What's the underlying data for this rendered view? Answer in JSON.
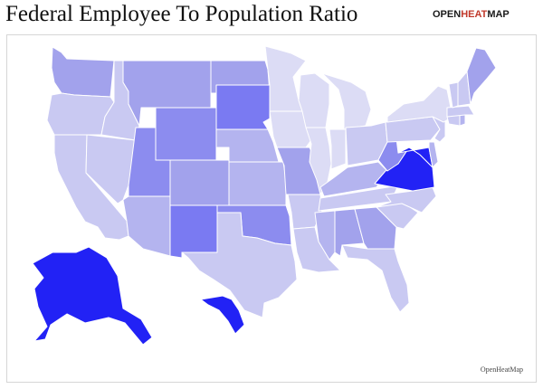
{
  "header": {
    "title": "Federal Employee To Population Ratio",
    "brand": {
      "open": "OPEN",
      "heat": "HEAT",
      "map": "MAP"
    }
  },
  "footer": {
    "credit": "OpenHeatMap"
  },
  "colors": {
    "background": "#ffffff",
    "border": "#d6d6d6",
    "brand_accent": "#c0392b",
    "level_0": "#dcdcf5",
    "level_1": "#c9c9f2",
    "level_2": "#b4b4ef",
    "level_3": "#a2a2ec",
    "level_4": "#8c8cef",
    "level_5": "#7a7af2",
    "level_max": "#2222f5",
    "borders": "#ffffff"
  },
  "map": {
    "type": "choropleth",
    "region": "United States",
    "unit": "state",
    "shading": "relative federal-employee-to-population ratio; darker blue = higher",
    "states": [
      {
        "name": "Washington",
        "level": 3
      },
      {
        "name": "Oregon",
        "level": 1
      },
      {
        "name": "California",
        "level": 1
      },
      {
        "name": "Idaho",
        "level": 1
      },
      {
        "name": "Nevada",
        "level": 1
      },
      {
        "name": "Montana",
        "level": 3
      },
      {
        "name": "Wyoming",
        "level": 4
      },
      {
        "name": "Utah",
        "level": 4
      },
      {
        "name": "Arizona",
        "level": 2
      },
      {
        "name": "Colorado",
        "level": 3
      },
      {
        "name": "New Mexico",
        "level": 5
      },
      {
        "name": "North Dakota",
        "level": 3
      },
      {
        "name": "South Dakota",
        "level": 5
      },
      {
        "name": "Nebraska",
        "level": 2
      },
      {
        "name": "Kansas",
        "level": 2
      },
      {
        "name": "Oklahoma",
        "level": 4
      },
      {
        "name": "Texas",
        "level": 1
      },
      {
        "name": "Minnesota",
        "level": 0
      },
      {
        "name": "Iowa",
        "level": 0
      },
      {
        "name": "Missouri",
        "level": 3
      },
      {
        "name": "Arkansas",
        "level": 1
      },
      {
        "name": "Louisiana",
        "level": 1
      },
      {
        "name": "Wisconsin",
        "level": 0
      },
      {
        "name": "Illinois",
        "level": 0
      },
      {
        "name": "Michigan",
        "level": 0
      },
      {
        "name": "Indiana",
        "level": 0
      },
      {
        "name": "Ohio",
        "level": 1
      },
      {
        "name": "Kentucky",
        "level": 2
      },
      {
        "name": "Tennessee",
        "level": 1
      },
      {
        "name": "Mississippi",
        "level": 2
      },
      {
        "name": "Alabama",
        "level": 3
      },
      {
        "name": "Georgia",
        "level": 3
      },
      {
        "name": "Florida",
        "level": 1
      },
      {
        "name": "South Carolina",
        "level": 1
      },
      {
        "name": "North Carolina",
        "level": 1
      },
      {
        "name": "Virginia",
        "level": 6
      },
      {
        "name": "West Virginia",
        "level": 4
      },
      {
        "name": "Maryland",
        "level": 6
      },
      {
        "name": "Delaware",
        "level": 2
      },
      {
        "name": "Pennsylvania",
        "level": 1
      },
      {
        "name": "New Jersey",
        "level": 1
      },
      {
        "name": "New York",
        "level": 0
      },
      {
        "name": "Connecticut",
        "level": 1
      },
      {
        "name": "Rhode Island",
        "level": 2
      },
      {
        "name": "Massachusetts",
        "level": 1
      },
      {
        "name": "Vermont",
        "level": 1
      },
      {
        "name": "New Hampshire",
        "level": 1
      },
      {
        "name": "Maine",
        "level": 3
      },
      {
        "name": "Alaska",
        "level": 6
      },
      {
        "name": "Hawaii",
        "level": 6
      }
    ]
  }
}
